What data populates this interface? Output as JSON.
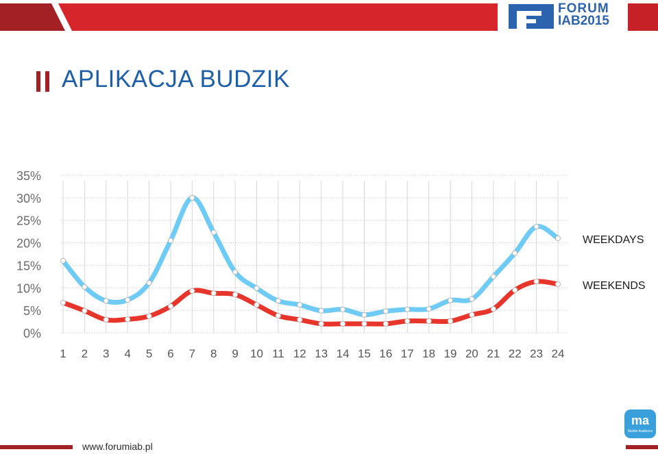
{
  "header": {
    "logo_line1": "FORUM",
    "logo_line2": "IAB2015",
    "accent_dark": "#a32125",
    "accent_red": "#d7262b",
    "brand_blue": "#2c63ae"
  },
  "slide": {
    "title": "APLIKACJA BUDZIK"
  },
  "chart_data": {
    "type": "line",
    "categories": [
      "1",
      "2",
      "3",
      "4",
      "5",
      "6",
      "7",
      "8",
      "9",
      "10",
      "11",
      "12",
      "13",
      "14",
      "15",
      "16",
      "17",
      "18",
      "19",
      "20",
      "21",
      "22",
      "23",
      "24"
    ],
    "y_ticks": [
      "35%",
      "30%",
      "25%",
      "20%",
      "15%",
      "10%",
      "5%",
      "0%"
    ],
    "ylim": [
      0,
      35
    ],
    "grid": true,
    "legend_placement": "right",
    "series": [
      {
        "name": "WEEKDAYS",
        "color": "#6ecbf5",
        "values": [
          16,
          10.2,
          7.1,
          7.3,
          11.1,
          20.5,
          30,
          22.3,
          13.5,
          9.9,
          7.1,
          6.2,
          4.9,
          5.2,
          4.0,
          4.8,
          5.2,
          5.3,
          7.2,
          7.5,
          12.5,
          17.7,
          23.6,
          21.0
        ]
      },
      {
        "name": "WEEKENDS",
        "color": "#e8352c",
        "values": [
          6.7,
          4.9,
          2.9,
          3.0,
          3.7,
          5.9,
          9.3,
          8.8,
          8.5,
          6.2,
          3.8,
          2.9,
          2.0,
          2.0,
          2.0,
          2.0,
          2.6,
          2.6,
          2.6,
          4.0,
          5.3,
          9.5,
          11.4,
          10.8
        ]
      }
    ]
  },
  "footer": {
    "url": "www.forumiab.pl",
    "badge_text": "ma",
    "badge_subtext": "Mobile Audience"
  }
}
